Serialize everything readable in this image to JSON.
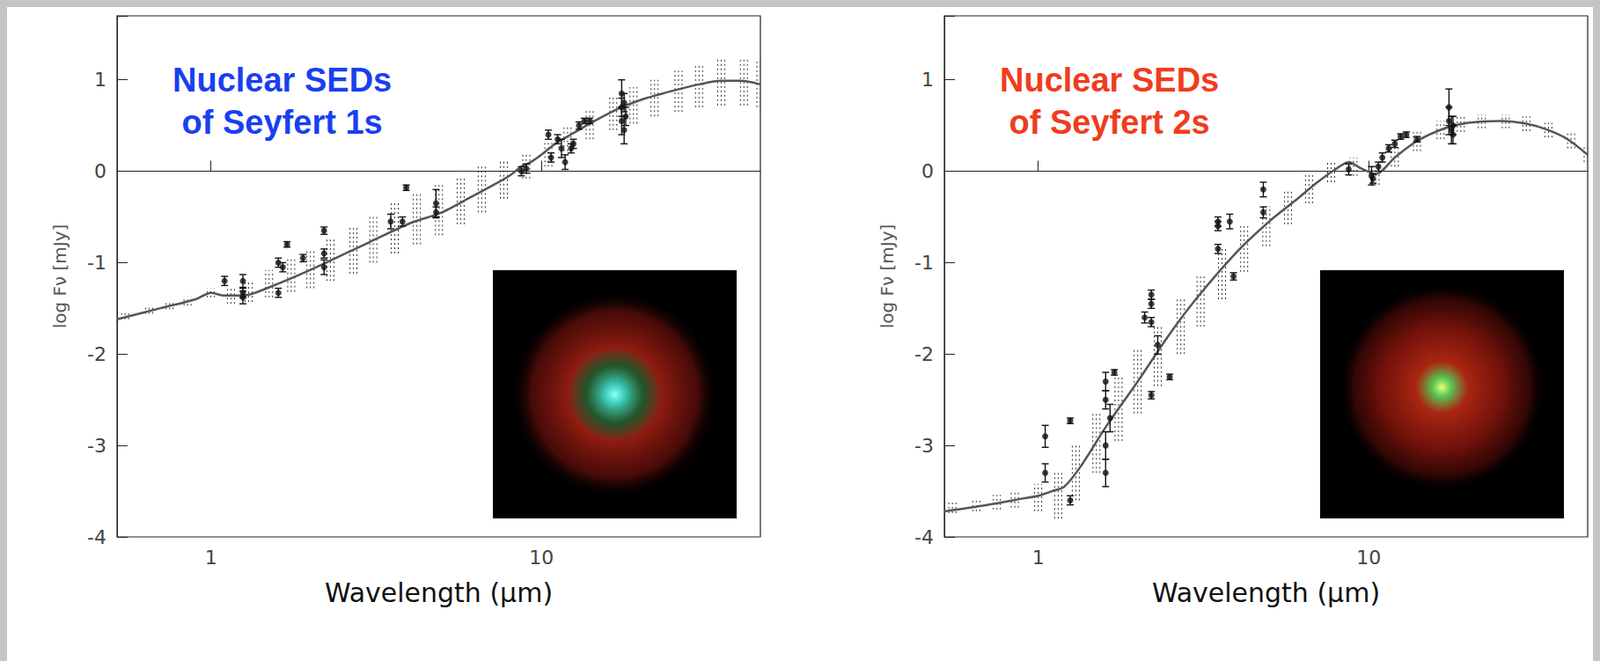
{
  "chart_data": [
    {
      "type": "scatter",
      "title": "Nuclear SEDs of Seyfert 1s",
      "color": "#1a3ff0",
      "x_label": "Wavelength (μm)",
      "y_label": "log Fν [mJy]",
      "log": "x",
      "xlim": [
        0.52,
        46
      ],
      "ylim": [
        -4,
        1.7
      ],
      "xticks": [
        1,
        10
      ],
      "yticks": [
        -4,
        -3,
        -2,
        -1,
        0,
        1
      ],
      "points": {
        "x": [
          1.1,
          1.25,
          1.25,
          1.25,
          1.6,
          1.6,
          1.65,
          1.7,
          1.9,
          2.2,
          2.2,
          2.2,
          3.5,
          3.8,
          3.9,
          4.8,
          4.8,
          8.7,
          9.0,
          10.5,
          10.7,
          11.2,
          11.5,
          11.8,
          12.3,
          12.5,
          13,
          13.5,
          14,
          17.5,
          17.5,
          17.5,
          17.8,
          17.8,
          18
        ],
        "y": [
          -1.2,
          -1.2,
          -1.38,
          -1.33,
          -1.33,
          -1.0,
          -1.05,
          -0.8,
          -0.95,
          -0.65,
          -0.9,
          -1.05,
          -0.55,
          -0.55,
          -0.18,
          -0.35,
          -0.45,
          0.0,
          0.03,
          0.4,
          0.15,
          0.35,
          0.25,
          0.1,
          0.25,
          0.3,
          0.5,
          0.55,
          0.55,
          0.85,
          0.7,
          0.55,
          0.45,
          0.75,
          0.6
        ],
        "error": [
          0.05,
          0.07,
          0.07,
          0.05,
          0.05,
          0.05,
          0.05,
          0.03,
          0.04,
          0.04,
          0.05,
          0.08,
          0.08,
          0.05,
          0.03,
          0.15,
          0.06,
          0.05,
          0.05,
          0.05,
          0.05,
          0.05,
          0.1,
          0.08,
          0.05,
          0.05,
          0.04,
          0.03,
          0.03,
          0.15,
          0.1,
          0.15,
          0.15,
          0.1,
          0.1
        ]
      },
      "model": {
        "x": [
          0.52,
          0.7,
          0.9,
          1.0,
          1.1,
          1.25,
          1.5,
          2,
          3,
          4,
          5,
          6,
          7,
          8,
          8.7,
          9.3,
          10,
          11,
          12,
          14,
          17,
          20,
          25,
          30,
          35,
          40,
          46
        ],
        "y": [
          -1.62,
          -1.5,
          -1.4,
          -1.33,
          -1.36,
          -1.36,
          -1.27,
          -1.08,
          -0.78,
          -0.57,
          -0.45,
          -0.3,
          -0.17,
          -0.05,
          0.05,
          0.1,
          0.18,
          0.3,
          0.38,
          0.52,
          0.68,
          0.78,
          0.88,
          0.95,
          0.99,
          0.99,
          0.95
        ]
      },
      "band": {
        "x": [
          0.55,
          0.65,
          0.75,
          0.85,
          1.0,
          1.15,
          1.3,
          1.5,
          1.75,
          2.0,
          2.3,
          2.7,
          3.1,
          3.6,
          4.2,
          4.9,
          5.7,
          6.6,
          7.7,
          9.0,
          10.5,
          12,
          14,
          16.5,
          19,
          22,
          26,
          30,
          35,
          41,
          46
        ],
        "low": [
          -1.62,
          -1.56,
          -1.51,
          -1.47,
          -1.38,
          -1.45,
          -1.43,
          -1.38,
          -1.32,
          -1.28,
          -1.2,
          -1.12,
          -1.0,
          -0.9,
          -0.8,
          -0.7,
          -0.58,
          -0.45,
          -0.3,
          -0.08,
          0.05,
          0.22,
          0.35,
          0.45,
          0.52,
          0.6,
          0.65,
          0.7,
          0.72,
          0.72,
          0.7
        ],
        "high": [
          -1.55,
          -1.48,
          -1.42,
          -1.37,
          -1.28,
          -1.27,
          -1.2,
          -1.08,
          -0.95,
          -0.85,
          -0.72,
          -0.6,
          -0.48,
          -0.35,
          -0.25,
          -0.15,
          -0.05,
          0.05,
          0.12,
          0.18,
          0.32,
          0.5,
          0.68,
          0.82,
          0.92,
          1.0,
          1.1,
          1.18,
          1.22,
          1.25,
          1.22
        ]
      }
    },
    {
      "type": "scatter",
      "title": "Nuclear SEDs of Seyfert 2s",
      "color": "#f03c1e",
      "x_label": "Wavelength (μm)",
      "y_label": "log Fν [mJy]",
      "log": "x",
      "xlim": [
        0.52,
        46
      ],
      "ylim": [
        -4,
        1.7
      ],
      "xticks": [
        1,
        10
      ],
      "yticks": [
        -4,
        -3,
        -2,
        -1,
        0,
        1
      ],
      "points": {
        "x": [
          1.05,
          1.05,
          1.25,
          1.25,
          1.6,
          1.6,
          1.6,
          1.6,
          1.65,
          1.7,
          2.1,
          2.2,
          2.2,
          2.2,
          2.2,
          2.3,
          2.5,
          3.5,
          3.5,
          3.5,
          3.8,
          3.9,
          4.8,
          4.8,
          8.7,
          10.2,
          10.3,
          10.7,
          11,
          11.5,
          12,
          12.5,
          13,
          14,
          17.5,
          17.5,
          17.8,
          18,
          18
        ],
        "y": [
          -2.9,
          -3.3,
          -2.73,
          -3.6,
          -2.3,
          -2.5,
          -3.0,
          -3.3,
          -2.7,
          -2.2,
          -1.6,
          -1.35,
          -1.45,
          -1.65,
          -2.45,
          -1.9,
          -2.25,
          -0.55,
          -0.6,
          -0.85,
          -0.55,
          -1.15,
          -0.2,
          -0.45,
          0.02,
          -0.05,
          -0.08,
          0.05,
          0.15,
          0.25,
          0.3,
          0.38,
          0.4,
          0.35,
          0.7,
          0.55,
          0.45,
          0.5,
          0.4
        ],
        "error": [
          0.12,
          0.1,
          0.03,
          0.05,
          0.1,
          0.1,
          0.15,
          0.15,
          0.15,
          0.03,
          0.06,
          0.05,
          0.05,
          0.05,
          0.04,
          0.1,
          0.03,
          0.05,
          0.05,
          0.05,
          0.08,
          0.04,
          0.08,
          0.06,
          0.06,
          0.1,
          0.05,
          0.05,
          0.05,
          0.04,
          0.04,
          0.03,
          0.03,
          0.03,
          0.2,
          0.15,
          0.15,
          0.1,
          0.1
        ]
      },
      "model": {
        "x": [
          0.52,
          0.7,
          0.9,
          1.0,
          1.1,
          1.2,
          1.35,
          1.6,
          2,
          2.5,
          3,
          4,
          5,
          6,
          7,
          8,
          8.7,
          9.5,
          10.5,
          12,
          14,
          17,
          20,
          25,
          30,
          35,
          40,
          46
        ],
        "y": [
          -3.72,
          -3.65,
          -3.58,
          -3.55,
          -3.5,
          -3.45,
          -3.22,
          -2.8,
          -2.3,
          -1.78,
          -1.4,
          -0.88,
          -0.55,
          -0.32,
          -0.12,
          0.03,
          0.1,
          0.03,
          -0.03,
          0.15,
          0.33,
          0.47,
          0.53,
          0.55,
          0.52,
          0.45,
          0.35,
          0.18
        ]
      },
      "band": {
        "x": [
          0.55,
          0.65,
          0.75,
          0.85,
          1.0,
          1.15,
          1.3,
          1.5,
          1.75,
          2.0,
          2.3,
          2.7,
          3.1,
          3.6,
          4.2,
          4.9,
          5.7,
          6.6,
          7.7,
          9.0,
          10.5,
          12,
          14,
          16.5,
          19,
          22,
          26,
          30,
          35,
          41,
          46
        ],
        "low": [
          -3.74,
          -3.72,
          -3.7,
          -3.68,
          -3.72,
          -3.8,
          -3.6,
          -3.3,
          -2.95,
          -2.65,
          -2.35,
          -2.0,
          -1.7,
          -1.4,
          -1.1,
          -0.82,
          -0.58,
          -0.35,
          -0.12,
          -0.05,
          -0.15,
          0.05,
          0.22,
          0.35,
          0.43,
          0.47,
          0.47,
          0.44,
          0.37,
          0.25,
          0.1
        ],
        "high": [
          -3.62,
          -3.58,
          -3.54,
          -3.5,
          -3.42,
          -3.3,
          -3.0,
          -2.65,
          -2.25,
          -1.95,
          -1.7,
          -1.4,
          -1.15,
          -0.85,
          -0.6,
          -0.38,
          -0.2,
          -0.02,
          0.12,
          0.15,
          0.08,
          0.27,
          0.43,
          0.55,
          0.6,
          0.62,
          0.62,
          0.6,
          0.53,
          0.42,
          0.27
        ]
      }
    }
  ]
}
